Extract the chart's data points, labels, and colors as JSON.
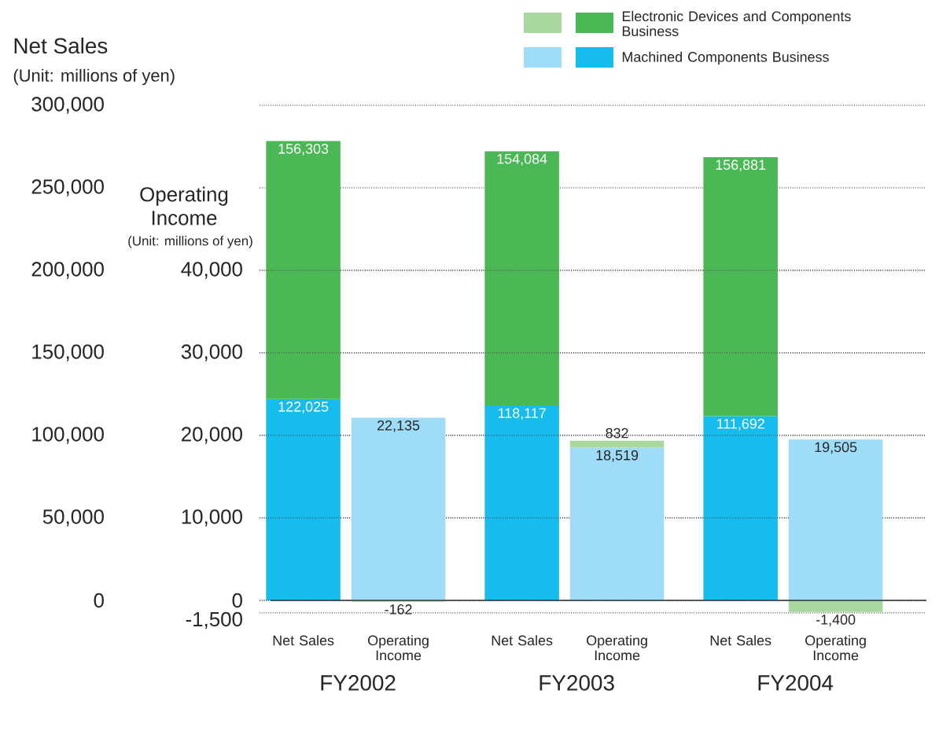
{
  "chart_data": {
    "type": "bar",
    "stacked": true,
    "ylabel": "Net Sales",
    "y2label": "Operating Income",
    "categories": [
      "FY2002",
      "FY2003",
      "FY2004"
    ],
    "series": [
      {
        "name": "Machined Components Business",
        "color": "#17bcef",
        "values": [
          122025,
          118117,
          111692
        ],
        "value_labels": [
          "122,025",
          "118,117",
          "111,692"
        ]
      },
      {
        "name": "Electronic Devices and Components Business",
        "color": "#4bb856",
        "values": [
          156303,
          154084,
          156881
        ],
        "value_labels": [
          "156,303",
          "154,084",
          "156,881"
        ]
      },
      {
        "color": "#9fdcf7",
        "axis": "y2",
        "values": [
          22135,
          18519,
          19505
        ],
        "value_labels": [
          "22,135",
          "18,519",
          "19,505"
        ]
      },
      {
        "color": "#a8d7a0",
        "axis": "y2",
        "values": [
          -162,
          832,
          -1400
        ],
        "value_labels": [
          "-162",
          "832",
          "-1,400"
        ]
      }
    ],
    "ylim": [
      0,
      300000
    ],
    "yticks": [
      {
        "value": 0,
        "label": "0"
      },
      {
        "value": 50000,
        "label": "50,000"
      },
      {
        "value": 100000,
        "label": "100,000"
      },
      {
        "value": 150000,
        "label": "150,000"
      },
      {
        "value": 200000,
        "label": "200,000"
      },
      {
        "value": 250000,
        "label": "250,000"
      },
      {
        "value": 300000,
        "label": "300,000"
      }
    ],
    "y2lim": [
      -1500,
      40000
    ],
    "y2ticks": [
      {
        "value": -1500,
        "label": "-1,500"
      },
      {
        "value": 0,
        "label": "0"
      },
      {
        "value": 10000,
        "label": "10,000"
      },
      {
        "value": 20000,
        "label": "20,000"
      },
      {
        "value": 30000,
        "label": "30,000"
      },
      {
        "value": 40000,
        "label": "40,000"
      }
    ],
    "grid": true,
    "legend": "top right",
    "annotations": [
      "(Unit: millions of yen)",
      "(Unit: millions of yen)",
      "Net Sales",
      "Operating Income",
      "Net Sales",
      "Operating Income",
      "Net Sales",
      "Operating Income"
    ]
  }
}
